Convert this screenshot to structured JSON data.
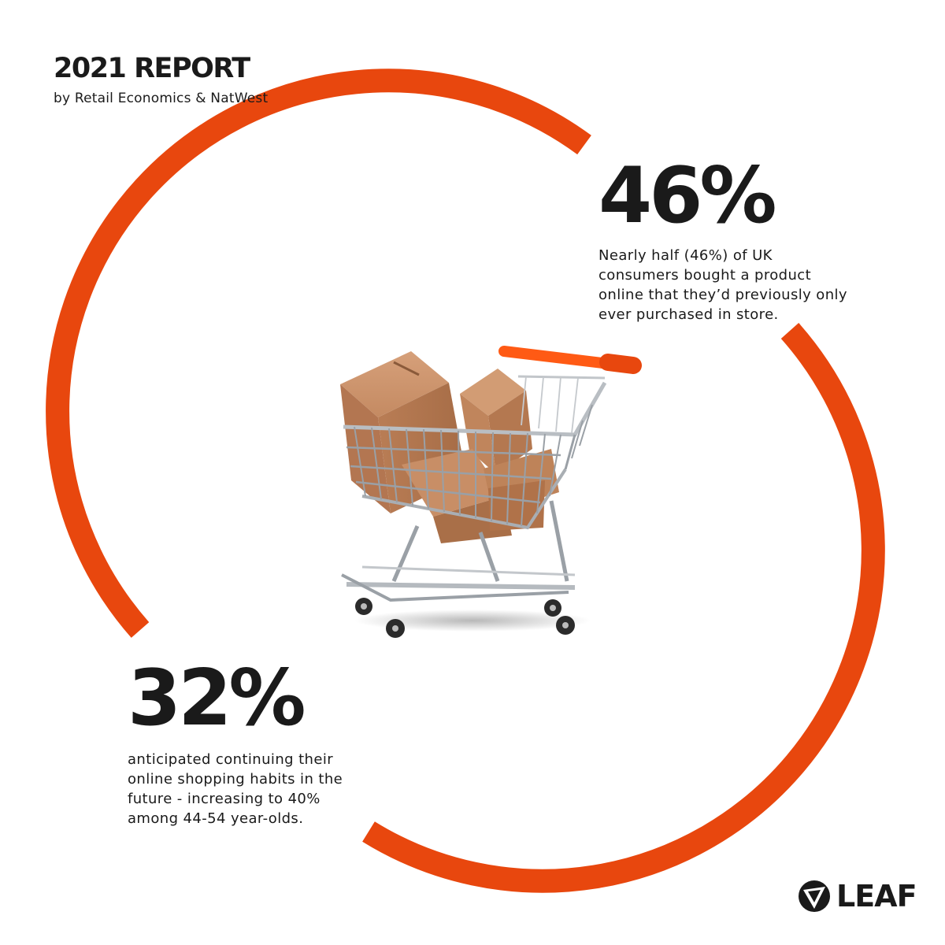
{
  "header": {
    "title": "2021 REPORT",
    "subtitle": "by Retail Economics & NatWest"
  },
  "stats": [
    {
      "value": "46%",
      "description_lines": [
        "Nearly half (46%) of UK",
        "consumers bought a product",
        "online that they’d previously only",
        "ever purchased in store."
      ]
    },
    {
      "value": "32%",
      "description_lines": [
        "anticipated continuing their",
        "online shopping habits in the",
        "future - increasing to 40%",
        "among 44-54 year-olds."
      ]
    }
  ],
  "logo": {
    "text": "LEAF",
    "icon": "leaf-logo-icon"
  },
  "colors": {
    "accent": "#E8470E",
    "text": "#1A1A1A",
    "background": "#FFFFFF"
  }
}
